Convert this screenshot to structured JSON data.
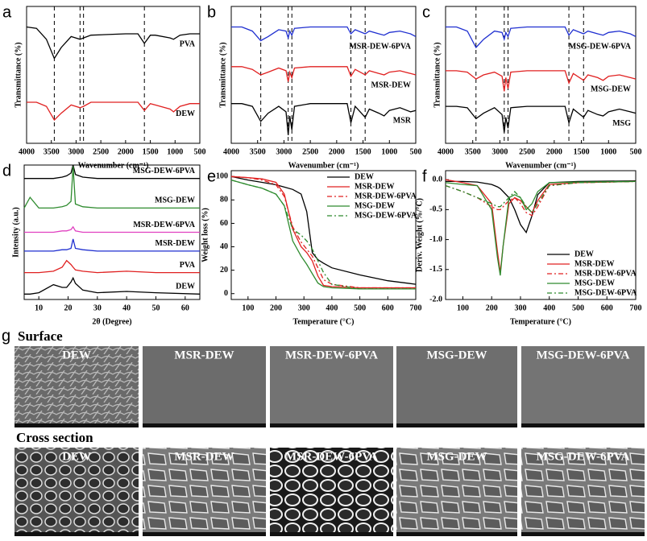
{
  "chart_data": [
    {
      "type": "line",
      "panel": "a",
      "xlabel": "Wavenumber (cm⁻¹)",
      "ylabel": "Transmittance (%)",
      "xlim": [
        4000,
        500
      ],
      "xticks": [
        4000,
        3500,
        3000,
        2500,
        2000,
        1500,
        1000,
        500
      ],
      "ylim": [
        0,
        10
      ],
      "legend": "below-line",
      "reference_lines": [
        3440,
        2920,
        2850,
        1620
      ],
      "x": [
        4000,
        3800,
        3600,
        3440,
        3300,
        3100,
        2920,
        2850,
        2700,
        2000,
        1750,
        1620,
        1500,
        1400,
        1100,
        1030,
        900,
        700,
        500
      ],
      "series": [
        {
          "name": "PVA",
          "color": "#000000",
          "values": [
            8.5,
            8.4,
            7.6,
            6.2,
            7.0,
            7.8,
            7.6,
            7.7,
            7.9,
            8.0,
            8.0,
            7.3,
            7.9,
            7.9,
            7.7,
            7.6,
            7.9,
            8.0,
            8.0
          ]
        },
        {
          "name": "DEW",
          "color": "#e02020",
          "values": [
            3.0,
            3.0,
            2.7,
            1.7,
            2.2,
            2.8,
            2.6,
            2.7,
            3.0,
            3.0,
            3.0,
            2.4,
            2.9,
            2.8,
            2.5,
            2.3,
            2.7,
            2.9,
            2.9
          ]
        }
      ]
    },
    {
      "type": "line",
      "panel": "b",
      "xlabel": "Wavenumber (cm⁻¹)",
      "ylabel": "Transmittance (%)",
      "xlim": [
        4000,
        500
      ],
      "xticks": [
        4000,
        3500,
        3000,
        2500,
        2000,
        1500,
        1000,
        500
      ],
      "ylim": [
        0,
        10
      ],
      "legend": "below-line",
      "reference_lines": [
        3440,
        2920,
        2850,
        1730,
        1460
      ],
      "x": [
        4000,
        3800,
        3600,
        3440,
        3300,
        3100,
        2960,
        2920,
        2890,
        2850,
        2800,
        2500,
        2000,
        1800,
        1730,
        1650,
        1460,
        1380,
        1200,
        1100,
        1000,
        800,
        600,
        500
      ],
      "series": [
        {
          "name": "MSR-DEW-6PVA",
          "color": "#1f2fd0",
          "values": [
            8.5,
            8.5,
            8.2,
            7.5,
            7.8,
            8.3,
            8.2,
            7.7,
            8.2,
            7.9,
            8.4,
            8.5,
            8.5,
            8.5,
            8.0,
            8.3,
            8.0,
            8.2,
            8.0,
            7.9,
            8.1,
            8.2,
            8.0,
            7.8
          ]
        },
        {
          "name": "MSR-DEW",
          "color": "#e02020",
          "values": [
            5.6,
            5.6,
            5.4,
            5.0,
            5.2,
            5.5,
            5.3,
            4.5,
            5.2,
            4.8,
            5.5,
            5.6,
            5.6,
            5.6,
            4.9,
            5.4,
            5.0,
            5.3,
            5.1,
            5.0,
            5.2,
            5.3,
            5.1,
            5.0
          ]
        },
        {
          "name": "MSR",
          "color": "#000000",
          "values": [
            2.9,
            2.9,
            2.7,
            1.6,
            2.2,
            2.7,
            2.3,
            0.6,
            2.0,
            1.0,
            2.7,
            2.9,
            2.9,
            2.9,
            1.5,
            2.7,
            1.9,
            2.5,
            2.2,
            2.0,
            2.4,
            2.6,
            2.3,
            2.4
          ]
        }
      ]
    },
    {
      "type": "line",
      "panel": "c",
      "xlabel": "Wavenumber (cm⁻¹)",
      "ylabel": "Transmittance (%)",
      "xlim": [
        4000,
        500
      ],
      "xticks": [
        4000,
        3500,
        3000,
        2500,
        2000,
        1500,
        1000,
        500
      ],
      "ylim": [
        0,
        10
      ],
      "legend": "below-line",
      "reference_lines": [
        3440,
        2920,
        2850,
        1730,
        1460
      ],
      "x": [
        4000,
        3800,
        3600,
        3440,
        3300,
        3100,
        2960,
        2920,
        2890,
        2850,
        2800,
        2500,
        2000,
        1800,
        1730,
        1650,
        1460,
        1380,
        1200,
        1100,
        1000,
        800,
        600,
        500
      ],
      "series": [
        {
          "name": "MSG-DEW-6PVA",
          "color": "#1f2fd0",
          "values": [
            8.5,
            8.5,
            8.2,
            7.0,
            7.6,
            8.2,
            8.1,
            7.6,
            8.1,
            7.8,
            8.4,
            8.5,
            8.5,
            8.5,
            7.9,
            8.3,
            8.0,
            8.2,
            8.0,
            7.9,
            8.1,
            8.2,
            8.0,
            7.8
          ]
        },
        {
          "name": "MSG-DEW",
          "color": "#e02020",
          "values": [
            5.3,
            5.3,
            5.2,
            4.7,
            5.0,
            5.2,
            4.9,
            3.8,
            4.8,
            4.0,
            5.2,
            5.3,
            5.3,
            5.3,
            4.4,
            5.1,
            4.6,
            5.0,
            4.8,
            4.6,
            4.9,
            5.0,
            4.8,
            4.7
          ]
        },
        {
          "name": "MSG",
          "color": "#000000",
          "values": [
            2.7,
            2.7,
            2.6,
            1.8,
            2.2,
            2.6,
            2.1,
            0.8,
            1.9,
            1.1,
            2.6,
            2.7,
            2.7,
            2.7,
            1.5,
            2.5,
            1.9,
            2.4,
            2.1,
            2.0,
            2.3,
            2.5,
            2.3,
            2.2
          ]
        }
      ]
    },
    {
      "type": "line",
      "panel": "d",
      "xlabel": "2θ (Degree)",
      "ylabel": "Intensity (a.u.)",
      "xlim": [
        5,
        65
      ],
      "xticks": [
        10,
        20,
        30,
        40,
        50,
        60
      ],
      "ylim": [
        0,
        10
      ],
      "legend": "above-line",
      "x": [
        5,
        7,
        10,
        15,
        18,
        19.5,
        21,
        21.7,
        22.5,
        25,
        30,
        40,
        50,
        65
      ],
      "series": [
        {
          "name": "MSG-DEW-6PVA",
          "color": "#000000",
          "values": [
            9.0,
            9.0,
            9.0,
            9.0,
            9.1,
            9.2,
            9.4,
            10.0,
            9.3,
            9.1,
            9.0,
            9.0,
            9.0,
            9.0
          ]
        },
        {
          "name": "MSG-DEW",
          "color": "#2e8b2e",
          "values": [
            6.8,
            7.6,
            6.8,
            6.8,
            6.9,
            7.0,
            7.3,
            9.9,
            7.1,
            6.9,
            6.8,
            6.8,
            6.8,
            6.8
          ]
        },
        {
          "name": "MSR-DEW-6PVA",
          "color": "#e040c0",
          "values": [
            5.0,
            5.0,
            5.0,
            5.0,
            5.1,
            5.1,
            5.2,
            5.4,
            5.1,
            5.0,
            5.0,
            5.0,
            5.0,
            5.0
          ]
        },
        {
          "name": "MSR-DEW",
          "color": "#1f2fd0",
          "values": [
            3.6,
            3.6,
            3.6,
            3.6,
            3.7,
            3.7,
            3.8,
            4.5,
            3.8,
            3.7,
            3.6,
            3.6,
            3.6,
            3.6
          ]
        },
        {
          "name": "PVA",
          "color": "#e02020",
          "values": [
            2.0,
            2.0,
            2.0,
            2.1,
            2.4,
            2.9,
            2.6,
            2.4,
            2.2,
            2.1,
            2.0,
            2.1,
            2.0,
            2.0
          ]
        },
        {
          "name": "DEW",
          "color": "#000000",
          "values": [
            0.4,
            0.4,
            0.5,
            1.1,
            0.9,
            0.9,
            1.3,
            1.6,
            1.2,
            0.7,
            0.5,
            0.6,
            0.5,
            0.4
          ]
        }
      ]
    },
    {
      "type": "line",
      "panel": "e",
      "xlabel": "Temperature (°C)",
      "ylabel": "Weight loss (%)",
      "xlim": [
        40,
        700
      ],
      "xticks": [
        100,
        200,
        300,
        400,
        500,
        600,
        700
      ],
      "ylim": [
        -5,
        105
      ],
      "yticks": [
        0,
        20,
        40,
        60,
        80,
        100
      ],
      "legend": "upper right",
      "x": [
        40,
        100,
        150,
        200,
        230,
        260,
        290,
        310,
        330,
        350,
        370,
        400,
        500,
        600,
        700
      ],
      "series": [
        {
          "name": "DEW",
          "color": "#000000",
          "values": [
            100,
            97,
            95,
            93,
            91,
            89,
            85,
            70,
            35,
            29,
            26,
            22,
            16,
            11,
            8
          ]
        },
        {
          "name": "MSR-DEW",
          "color": "#e02020",
          "values": [
            100,
            99,
            98,
            95,
            85,
            55,
            40,
            35,
            28,
            15,
            7,
            6,
            5,
            5,
            5
          ]
        },
        {
          "name": "MSR-DEW-6PVA",
          "color": "#e02020",
          "dash": "dashdot",
          "values": [
            100,
            99,
            97,
            93,
            83,
            57,
            44,
            38,
            32,
            22,
            12,
            8,
            5,
            5,
            5
          ]
        },
        {
          "name": "MSG-DEW",
          "color": "#2e8b2e",
          "values": [
            97,
            93,
            90,
            85,
            75,
            45,
            32,
            25,
            17,
            9,
            6,
            5,
            4,
            4,
            4
          ]
        },
        {
          "name": "MSG-DEW-6PVA",
          "color": "#2e8b2e",
          "dash": "dashdot",
          "values": [
            97,
            93,
            90,
            85,
            75,
            55,
            50,
            45,
            38,
            28,
            18,
            8,
            4,
            4,
            4
          ]
        }
      ]
    },
    {
      "type": "line",
      "panel": "f",
      "xlabel": "Temperature (°C)",
      "ylabel": "Deriv. Weight (%/°C)",
      "xlim": [
        40,
        700
      ],
      "xticks": [
        100,
        200,
        300,
        400,
        500,
        600,
        700
      ],
      "ylim": [
        -2.0,
        0.15
      ],
      "yticks": [
        {
          "value": 0,
          "label": "0.0"
        },
        -0.5,
        {
          "value": -1,
          "label": "-1.0"
        },
        -1.5,
        {
          "value": -2,
          "label": "-2.0"
        }
      ],
      "legend": "lower right",
      "x": [
        40,
        100,
        150,
        200,
        220,
        230,
        240,
        260,
        280,
        300,
        320,
        340,
        360,
        400,
        500,
        700
      ],
      "series": [
        {
          "name": "DEW",
          "color": "#000000",
          "values": [
            -0.03,
            -0.03,
            -0.04,
            -0.08,
            -0.12,
            -0.15,
            -0.2,
            -0.3,
            -0.5,
            -0.75,
            -0.88,
            -0.6,
            -0.25,
            -0.05,
            -0.03,
            -0.02
          ]
        },
        {
          "name": "MSR-DEW",
          "color": "#e02020",
          "values": [
            0,
            -0.05,
            -0.1,
            -0.4,
            -1.2,
            -1.55,
            -1.1,
            -0.4,
            -0.3,
            -0.35,
            -0.45,
            -0.55,
            -0.35,
            -0.08,
            -0.05,
            -0.03
          ]
        },
        {
          "name": "MSR-DEW-6PVA",
          "color": "#e02020",
          "dash": "dashdot",
          "values": [
            -0.1,
            -0.2,
            -0.3,
            -0.45,
            -0.5,
            -0.5,
            -0.45,
            -0.35,
            -0.3,
            -0.4,
            -0.55,
            -0.6,
            -0.45,
            -0.1,
            -0.05,
            -0.03
          ]
        },
        {
          "name": "MSG-DEW",
          "color": "#2e8b2e",
          "values": [
            -0.05,
            -0.08,
            -0.1,
            -0.5,
            -1.3,
            -1.6,
            -1.1,
            -0.3,
            -0.25,
            -0.3,
            -0.5,
            -0.4,
            -0.2,
            -0.05,
            -0.04,
            -0.03
          ]
        },
        {
          "name": "MSG-DEW-6PVA",
          "color": "#2e8b2e",
          "dash": "dashdot",
          "values": [
            -0.1,
            -0.2,
            -0.3,
            -0.4,
            -0.45,
            -0.45,
            -0.4,
            -0.3,
            -0.2,
            -0.3,
            -0.45,
            -0.55,
            -0.4,
            -0.1,
            -0.05,
            -0.03
          ]
        }
      ]
    }
  ],
  "sem": {
    "panel": "g",
    "sections": [
      {
        "title": "Surface",
        "images": [
          "DEW",
          "MSR-DEW",
          "MSR-DEW-6PVA",
          "MSG-DEW",
          "MSG-DEW-6PVA"
        ]
      },
      {
        "title": "Cross section",
        "images": [
          "DEW",
          "MSR-DEW",
          "MSR-DEW-6PVA",
          "MSG-DEW",
          "MSG-DEW-6PVA"
        ]
      }
    ]
  }
}
